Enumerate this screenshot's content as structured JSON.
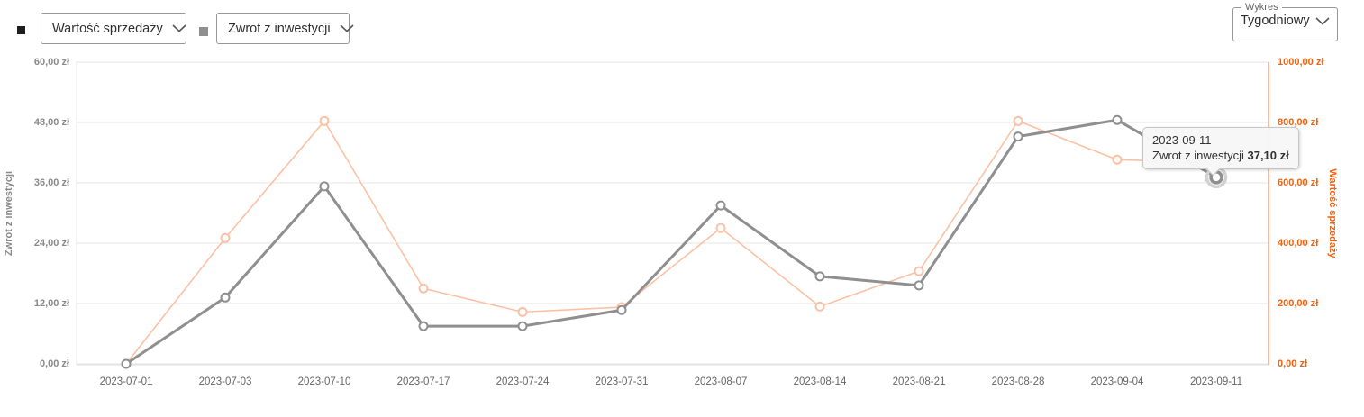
{
  "controls": {
    "series_selector_1": {
      "label": "Wartość sprzedaży",
      "marker_color": "#1f1f1f"
    },
    "series_selector_2": {
      "label": "Zwrot z inwestycji",
      "marker_color": "#8f8f8f"
    },
    "chart_type": {
      "group_label": "Wykres",
      "selected": "Tygodniowy"
    }
  },
  "tooltip": {
    "date": "2023-09-11",
    "series_label": "Zwrot z inwestycji",
    "value_bold": "37,10 zł"
  },
  "chart_data": {
    "type": "line",
    "x": [
      "2023-07-01",
      "2023-07-03",
      "2023-07-10",
      "2023-07-17",
      "2023-07-24",
      "2023-07-31",
      "2023-08-07",
      "2023-08-14",
      "2023-08-21",
      "2023-08-28",
      "2023-09-04",
      "2023-09-11"
    ],
    "series": [
      {
        "name": "Wartość sprzedaży",
        "axis": "right",
        "color": "#fbc1a5",
        "line_width": 1.6,
        "values": [
          0,
          417,
          805,
          250,
          172,
          188,
          450,
          190,
          307,
          805,
          677,
          665
        ]
      },
      {
        "name": "Zwrot z inwestycji",
        "axis": "left",
        "color": "#8f8f8f",
        "line_width": 3,
        "values": [
          0,
          13.2,
          35.3,
          7.5,
          7.5,
          10.7,
          31.5,
          17.4,
          15.6,
          45.2,
          48.5,
          37.1
        ]
      }
    ],
    "left_axis": {
      "title": "Zwrot z inwestycji",
      "min": 0,
      "max": 60,
      "color": "#8a8a8a",
      "tick_labels": [
        "60,00 zł",
        "48,00 zł",
        "36,00 zł",
        "24,00 zł",
        "12,00 zł",
        "0,00 zł"
      ]
    },
    "right_axis": {
      "title": "Wartość sprzedaży",
      "min": 0,
      "max": 1000,
      "color": "#f0620f",
      "line_color": "#f8a47c",
      "tick_labels": [
        "1000,00 zł",
        "800,00 zł",
        "600,00 zł",
        "400,00 zł",
        "200,00 zł",
        "0,00 zł"
      ]
    },
    "grid": true,
    "legend_position": "none",
    "highlight": {
      "series": "Zwrot z inwestycji",
      "x": "2023-09-11",
      "value": 37.1
    }
  }
}
